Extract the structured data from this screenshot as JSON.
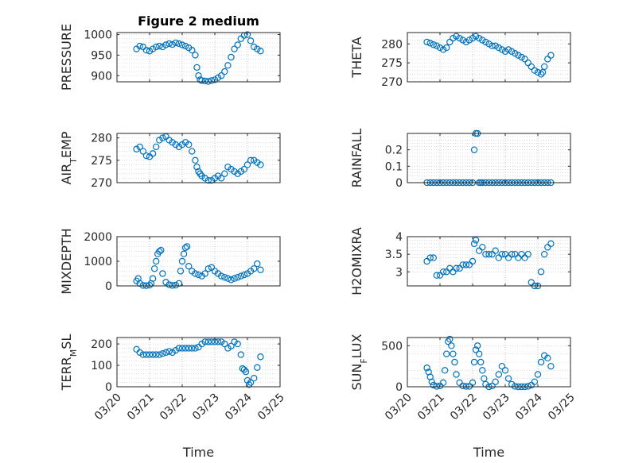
{
  "window": {
    "title": "Figure 2 medium"
  },
  "chart_data": [
    {
      "type": "scatter",
      "title": "Figure 2 medium",
      "ylabel": "PRESSURE",
      "ylim": [
        885,
        1005
      ],
      "yticks": [
        900,
        950,
        1000
      ],
      "xlim": [
        0,
        5
      ],
      "grid": "on",
      "color": "#0072BD",
      "x": [
        0.6,
        0.7,
        0.8,
        0.9,
        1.0,
        1.1,
        1.2,
        1.3,
        1.4,
        1.5,
        1.6,
        1.7,
        1.8,
        1.9,
        2.0,
        2.1,
        2.2,
        2.3,
        2.4,
        2.45,
        2.5,
        2.55,
        2.6,
        2.7,
        2.8,
        2.9,
        3.0,
        3.1,
        3.2,
        3.3,
        3.4,
        3.5,
        3.6,
        3.7,
        3.8,
        3.9,
        4.0,
        4.1,
        4.2,
        4.3,
        4.4
      ],
      "y": [
        965,
        972,
        970,
        962,
        960,
        965,
        970,
        972,
        970,
        975,
        978,
        976,
        980,
        978,
        975,
        972,
        968,
        962,
        950,
        920,
        900,
        890,
        888,
        887,
        886,
        888,
        890,
        895,
        900,
        910,
        925,
        945,
        965,
        975,
        990,
        998,
        1000,
        985,
        970,
        965,
        960
      ]
    },
    {
      "type": "scatter",
      "ylabel": "THETA",
      "ylim": [
        270,
        283
      ],
      "yticks": [
        270,
        275,
        280
      ],
      "xlim": [
        0,
        5
      ],
      "grid": "on",
      "color": "#0072BD",
      "x": [
        0.6,
        0.7,
        0.8,
        0.9,
        1.0,
        1.1,
        1.2,
        1.3,
        1.4,
        1.5,
        1.6,
        1.7,
        1.8,
        1.9,
        2.0,
        2.1,
        2.2,
        2.3,
        2.4,
        2.5,
        2.6,
        2.7,
        2.8,
        2.9,
        3.0,
        3.1,
        3.2,
        3.3,
        3.4,
        3.5,
        3.6,
        3.7,
        3.8,
        3.9,
        4.0,
        4.1,
        4.15,
        4.2,
        4.3,
        4.4
      ],
      "y": [
        280.5,
        280.2,
        279.8,
        279.5,
        279.0,
        278.5,
        279.0,
        280.5,
        281.5,
        282.0,
        281.5,
        281.0,
        280.5,
        281.0,
        281.5,
        282.0,
        281.5,
        281.0,
        280.5,
        280.0,
        279.5,
        279.5,
        279.0,
        278.5,
        278.0,
        278.5,
        278.0,
        277.5,
        277.0,
        276.5,
        276.0,
        275.0,
        274.0,
        273.0,
        272.5,
        272.0,
        272.5,
        274.0,
        276.0,
        277.0
      ]
    },
    {
      "type": "scatter",
      "ylabel": "AIR_TEMP",
      "ylabel_parts": [
        "AIR",
        "T",
        "EMP"
      ],
      "ylim": [
        270,
        281
      ],
      "yticks": [
        270,
        275,
        280
      ],
      "xlim": [
        0,
        5
      ],
      "grid": "on",
      "color": "#0072BD",
      "x": [
        0.6,
        0.7,
        0.8,
        0.9,
        1.0,
        1.1,
        1.2,
        1.3,
        1.4,
        1.5,
        1.6,
        1.7,
        1.8,
        1.9,
        2.0,
        2.1,
        2.2,
        2.3,
        2.4,
        2.45,
        2.5,
        2.55,
        2.6,
        2.7,
        2.8,
        2.9,
        3.0,
        3.1,
        3.2,
        3.3,
        3.4,
        3.5,
        3.6,
        3.7,
        3.8,
        3.9,
        4.0,
        4.1,
        4.2,
        4.3,
        4.4
      ],
      "y": [
        277.5,
        278.0,
        277.0,
        276.0,
        275.8,
        276.5,
        278.0,
        279.5,
        280.0,
        280.3,
        279.5,
        279.0,
        278.5,
        278.0,
        278.5,
        279.0,
        278.5,
        277.0,
        275.0,
        273.5,
        272.5,
        272.0,
        271.5,
        271.0,
        270.5,
        270.5,
        271.0,
        271.5,
        271.0,
        272.0,
        273.5,
        273.0,
        272.5,
        272.0,
        272.5,
        273.0,
        274.0,
        275.0,
        275.0,
        274.5,
        274.0
      ]
    },
    {
      "type": "scatter",
      "ylabel": "RAINFALL",
      "ylim": [
        0,
        0.3
      ],
      "yticks": [
        0,
        0.1,
        0.2
      ],
      "xlim": [
        0,
        5
      ],
      "grid": "on",
      "color": "#0072BD",
      "x": [
        0.6,
        0.7,
        0.8,
        0.9,
        1.0,
        1.1,
        1.2,
        1.3,
        1.4,
        1.5,
        1.6,
        1.7,
        1.8,
        1.9,
        2.0,
        2.05,
        2.1,
        2.15,
        2.2,
        2.25,
        2.3,
        2.4,
        2.5,
        2.6,
        2.7,
        2.8,
        2.9,
        3.0,
        3.1,
        3.2,
        3.3,
        3.4,
        3.5,
        3.6,
        3.7,
        3.8,
        3.9,
        4.0,
        4.1,
        4.2,
        4.3,
        4.4
      ],
      "y": [
        0,
        0,
        0,
        0,
        0,
        0,
        0,
        0,
        0,
        0,
        0,
        0,
        0,
        0,
        0,
        0.2,
        0.3,
        0.3,
        0,
        0,
        0,
        0,
        0,
        0,
        0,
        0,
        0,
        0,
        0,
        0,
        0,
        0,
        0,
        0,
        0,
        0,
        0,
        0,
        0,
        0,
        0,
        0
      ]
    },
    {
      "type": "scatter",
      "ylabel": "MIXDEPTH",
      "ylim": [
        0,
        2000
      ],
      "yticks": [
        0,
        1000,
        2000
      ],
      "xlim": [
        0,
        5
      ],
      "grid": "on",
      "color": "#0072BD",
      "x": [
        0.6,
        0.65,
        0.7,
        0.8,
        0.9,
        1.0,
        1.05,
        1.1,
        1.15,
        1.2,
        1.25,
        1.3,
        1.35,
        1.4,
        1.5,
        1.6,
        1.7,
        1.8,
        1.9,
        1.95,
        2.0,
        2.05,
        2.1,
        2.15,
        2.2,
        2.3,
        2.4,
        2.5,
        2.6,
        2.7,
        2.8,
        2.9,
        3.0,
        3.1,
        3.2,
        3.3,
        3.4,
        3.5,
        3.6,
        3.7,
        3.8,
        3.9,
        4.0,
        4.1,
        4.2,
        4.3,
        4.4
      ],
      "y": [
        200,
        300,
        100,
        20,
        10,
        30,
        100,
        300,
        700,
        1000,
        1300,
        1400,
        1450,
        500,
        150,
        50,
        20,
        30,
        100,
        600,
        1000,
        1300,
        1550,
        1600,
        800,
        600,
        500,
        450,
        400,
        500,
        700,
        750,
        600,
        500,
        400,
        350,
        300,
        250,
        300,
        350,
        400,
        450,
        500,
        600,
        700,
        900,
        650
      ]
    },
    {
      "type": "scatter",
      "ylabel": "H2OMIXRA",
      "ylim": [
        2.6,
        4
      ],
      "yticks": [
        3,
        3.5,
        4
      ],
      "xlim": [
        0,
        5
      ],
      "grid": "on",
      "color": "#0072BD",
      "x": [
        0.6,
        0.7,
        0.8,
        0.9,
        1.0,
        1.1,
        1.2,
        1.3,
        1.4,
        1.5,
        1.6,
        1.7,
        1.8,
        1.9,
        2.0,
        2.05,
        2.1,
        2.2,
        2.3,
        2.4,
        2.5,
        2.6,
        2.7,
        2.8,
        2.9,
        3.0,
        3.1,
        3.2,
        3.3,
        3.4,
        3.5,
        3.6,
        3.7,
        3.8,
        3.9,
        4.0,
        4.1,
        4.2,
        4.3,
        4.4
      ],
      "y": [
        3.3,
        3.4,
        3.4,
        2.9,
        2.9,
        3.0,
        3.0,
        3.1,
        3.0,
        3.1,
        3.1,
        3.2,
        3.2,
        3.2,
        3.3,
        3.8,
        3.9,
        3.6,
        3.7,
        3.5,
        3.5,
        3.5,
        3.6,
        3.4,
        3.5,
        3.5,
        3.4,
        3.5,
        3.5,
        3.4,
        3.5,
        3.4,
        3.5,
        2.7,
        2.6,
        2.6,
        3.0,
        3.5,
        3.7,
        3.8
      ]
    },
    {
      "type": "scatter",
      "ylabel": "TERR_MSL",
      "ylabel_parts": [
        "TERR",
        "M",
        "SL"
      ],
      "ylim": [
        0,
        230
      ],
      "yticks": [
        0,
        100,
        200
      ],
      "xlim": [
        0,
        5
      ],
      "grid": "on",
      "color": "#0072BD",
      "x": [
        0.6,
        0.7,
        0.8,
        0.9,
        1.0,
        1.1,
        1.2,
        1.3,
        1.4,
        1.5,
        1.6,
        1.7,
        1.8,
        1.9,
        2.0,
        2.1,
        2.2,
        2.3,
        2.4,
        2.5,
        2.6,
        2.7,
        2.8,
        2.9,
        3.0,
        3.1,
        3.2,
        3.3,
        3.4,
        3.5,
        3.6,
        3.7,
        3.8,
        3.85,
        3.9,
        3.95,
        4.0,
        4.05,
        4.1,
        4.2,
        4.3,
        4.4
      ],
      "y": [
        175,
        160,
        150,
        150,
        150,
        150,
        150,
        150,
        155,
        160,
        165,
        160,
        170,
        180,
        180,
        180,
        180,
        180,
        180,
        185,
        200,
        210,
        210,
        210,
        210,
        210,
        210,
        200,
        180,
        190,
        210,
        200,
        150,
        85,
        80,
        70,
        30,
        10,
        20,
        40,
        90,
        140
      ]
    },
    {
      "type": "scatter",
      "ylabel": "SUN_FLUX",
      "ylabel_parts": [
        "SUN",
        "F",
        "LUX"
      ],
      "ylim": [
        0,
        600
      ],
      "yticks": [
        0,
        500
      ],
      "xlim": [
        0,
        5
      ],
      "grid": "on",
      "color": "#0072BD",
      "x": [
        0.6,
        0.65,
        0.7,
        0.75,
        0.8,
        0.9,
        1.0,
        1.1,
        1.15,
        1.2,
        1.25,
        1.3,
        1.35,
        1.4,
        1.45,
        1.5,
        1.6,
        1.7,
        1.8,
        1.9,
        2.0,
        2.05,
        2.1,
        2.15,
        2.2,
        2.25,
        2.3,
        2.35,
        2.4,
        2.5,
        2.6,
        2.7,
        2.8,
        2.9,
        3.0,
        3.1,
        3.2,
        3.3,
        3.4,
        3.5,
        3.6,
        3.7,
        3.8,
        3.9,
        4.0,
        4.1,
        4.2,
        4.3,
        4.4
      ],
      "y": [
        230,
        180,
        120,
        60,
        20,
        5,
        10,
        50,
        200,
        400,
        550,
        580,
        500,
        400,
        300,
        150,
        50,
        10,
        5,
        5,
        50,
        300,
        450,
        500,
        400,
        300,
        200,
        100,
        30,
        0,
        10,
        60,
        150,
        250,
        200,
        100,
        30,
        5,
        0,
        0,
        0,
        5,
        20,
        60,
        150,
        300,
        380,
        350,
        250
      ]
    }
  ],
  "axes": {
    "time_xlabel": "Time",
    "xtick_labels": [
      "03/20",
      "03/21",
      "03/22",
      "03/23",
      "03/24",
      "03/25"
    ]
  }
}
